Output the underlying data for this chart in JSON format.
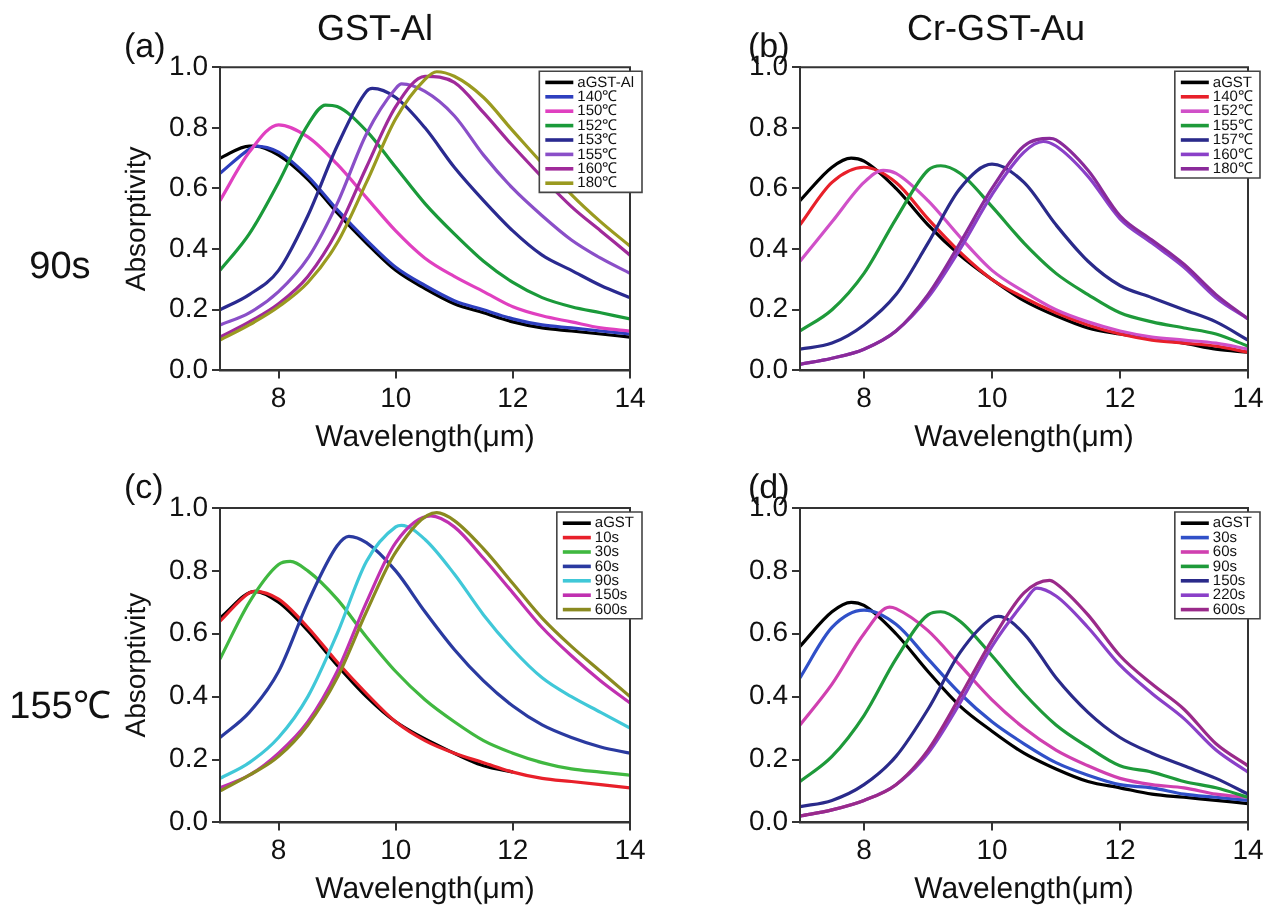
{
  "chart_data": [
    {
      "type": "line",
      "title": "GST-Al",
      "xlabel": "Wavelength(μm)",
      "ylabel": "Absorptivity",
      "annotations": [
        "(a)",
        "90s"
      ],
      "xlim": [
        7,
        14
      ],
      "xticks": [
        8,
        10,
        12,
        14
      ],
      "ylim": [
        0,
        1
      ],
      "yticks": [
        {
          "value": 0,
          "label": "0.0"
        },
        {
          "value": 0.2,
          "label": "0.2"
        },
        {
          "value": 0.4,
          "label": "0.4"
        },
        {
          "value": 0.6,
          "label": "0.6"
        },
        {
          "value": 0.8,
          "label": "0.8"
        },
        {
          "value": 1,
          "label": "1.0"
        }
      ],
      "grid": false,
      "legend": "top right",
      "marker": "none",
      "line_style": "solid",
      "series": [
        {
          "name": "aGST-Al",
          "color": "#000000",
          "x": [
            7,
            7.5,
            7.6,
            8,
            8.5,
            9,
            9.5,
            10,
            10.5,
            11,
            11.5,
            12,
            12.5,
            13,
            13.5,
            14
          ],
          "values": [
            0.7,
            0.74,
            0.74,
            0.71,
            0.63,
            0.52,
            0.42,
            0.33,
            0.27,
            0.22,
            0.19,
            0.16,
            0.14,
            0.13,
            0.12,
            0.11
          ]
        },
        {
          "name": "140℃",
          "color": "#2e3fbf",
          "x": [
            7,
            7.5,
            7.6,
            8,
            8.5,
            9,
            9.5,
            10,
            10.5,
            11,
            11.5,
            12,
            12.5,
            13,
            13.5,
            14
          ],
          "values": [
            0.65,
            0.73,
            0.74,
            0.72,
            0.64,
            0.53,
            0.43,
            0.34,
            0.28,
            0.23,
            0.2,
            0.17,
            0.15,
            0.14,
            0.13,
            0.12
          ]
        },
        {
          "name": "150℃",
          "color": "#e040c0",
          "x": [
            7,
            7.5,
            8,
            8.5,
            9,
            9.5,
            10,
            10.5,
            11,
            11.5,
            12,
            12.5,
            13,
            13.5,
            14
          ],
          "values": [
            0.56,
            0.72,
            0.81,
            0.77,
            0.68,
            0.57,
            0.46,
            0.37,
            0.31,
            0.26,
            0.21,
            0.18,
            0.16,
            0.14,
            0.13
          ]
        },
        {
          "name": "152℃",
          "color": "#1a9a3a",
          "x": [
            7,
            7.5,
            8,
            8.5,
            8.8,
            9,
            9.5,
            10,
            10.5,
            11,
            11.5,
            12,
            12.5,
            13,
            13.5,
            14
          ],
          "values": [
            0.33,
            0.45,
            0.62,
            0.81,
            0.875,
            0.87,
            0.79,
            0.67,
            0.55,
            0.45,
            0.36,
            0.29,
            0.24,
            0.21,
            0.19,
            0.17
          ]
        },
        {
          "name": "153℃",
          "color": "#2a2a90",
          "x": [
            7,
            7.5,
            8,
            8.5,
            9,
            9.5,
            9.6,
            10,
            10.5,
            11,
            11.5,
            12,
            12.5,
            13,
            13.5,
            14
          ],
          "values": [
            0.2,
            0.25,
            0.33,
            0.51,
            0.74,
            0.92,
            0.93,
            0.9,
            0.8,
            0.67,
            0.56,
            0.46,
            0.38,
            0.33,
            0.28,
            0.24
          ]
        },
        {
          "name": "155℃",
          "color": "#8a4fc8",
          "x": [
            7,
            7.5,
            8,
            8.5,
            9,
            9.5,
            10,
            10.1,
            10.5,
            11,
            11.5,
            12,
            12.5,
            13,
            13.5,
            14
          ],
          "values": [
            0.15,
            0.19,
            0.26,
            0.37,
            0.55,
            0.78,
            0.93,
            0.945,
            0.92,
            0.84,
            0.71,
            0.6,
            0.51,
            0.43,
            0.37,
            0.32
          ]
        },
        {
          "name": "160℃",
          "color": "#a02a9a",
          "x": [
            7,
            7.5,
            8,
            8.5,
            9,
            9.5,
            10,
            10.5,
            11,
            11.5,
            12,
            12.5,
            13,
            13.5,
            14
          ],
          "values": [
            0.11,
            0.16,
            0.22,
            0.31,
            0.46,
            0.67,
            0.87,
            0.97,
            0.95,
            0.85,
            0.74,
            null,
            0.54,
            0.46,
            0.38
          ]
        },
        {
          "name": "180℃",
          "color": "#9a9a20",
          "x": [
            7,
            7.5,
            8,
            8.5,
            9,
            9.5,
            10,
            10.5,
            10.7,
            11,
            11.5,
            12,
            12.5,
            13,
            13.5,
            14
          ],
          "values": [
            0.1,
            0.15,
            0.21,
            0.29,
            0.42,
            0.62,
            0.83,
            0.96,
            0.985,
            0.97,
            0.9,
            0.79,
            null,
            0.58,
            0.49,
            0.41
          ]
        }
      ]
    },
    {
      "type": "line",
      "title": "Cr-GST-Au",
      "xlabel": "Wavelength(μm)",
      "annotations": [
        "(b)"
      ],
      "xlim": [
        7,
        14
      ],
      "xticks": [
        8,
        10,
        12,
        14
      ],
      "ylim": [
        0,
        1
      ],
      "yticks": [
        {
          "value": 0,
          "label": "0.0"
        },
        {
          "value": 0.2,
          "label": "0.2"
        },
        {
          "value": 0.4,
          "label": "0.4"
        },
        {
          "value": 0.6,
          "label": "0.6"
        },
        {
          "value": 0.8,
          "label": "0.8"
        },
        {
          "value": 1,
          "label": "1.0"
        }
      ],
      "grid": false,
      "legend": "top right",
      "marker": "none",
      "line_style": "solid",
      "series": [
        {
          "name": "aGST",
          "color": "#000000",
          "x": [
            7,
            7.5,
            7.8,
            8,
            8.5,
            9,
            9.5,
            10,
            10.5,
            11,
            11.5,
            12,
            12.5,
            13,
            13.5,
            14
          ],
          "values": [
            0.56,
            0.67,
            0.7,
            0.69,
            0.6,
            0.48,
            0.38,
            0.3,
            0.23,
            0.18,
            0.14,
            0.12,
            null,
            0.09,
            0.07,
            0.06
          ]
        },
        {
          "name": "140℃",
          "color": "#e8202a",
          "x": [
            7,
            7.5,
            8,
            8.5,
            9,
            9.5,
            10,
            10.5,
            11,
            11.5,
            12,
            12.5,
            13,
            13.5,
            14
          ],
          "values": [
            0.48,
            0.62,
            0.67,
            0.62,
            0.5,
            0.39,
            0.3,
            0.24,
            0.19,
            0.15,
            0.12,
            0.1,
            0.09,
            0.08,
            0.06
          ]
        },
        {
          "name": "152℃",
          "color": "#d050c8",
          "x": [
            7,
            7.5,
            8,
            8.3,
            8.5,
            9,
            9.5,
            10,
            10.5,
            11,
            11.5,
            12,
            12.5,
            13,
            13.5,
            14
          ],
          "values": [
            0.36,
            0.49,
            0.62,
            0.66,
            0.65,
            0.56,
            0.44,
            0.33,
            0.26,
            0.2,
            0.16,
            0.13,
            0.11,
            0.1,
            0.09,
            0.07
          ]
        },
        {
          "name": "155℃",
          "color": "#1e9a3a",
          "x": [
            7,
            7.5,
            8,
            8.5,
            9,
            9.2,
            9.5,
            10,
            10.5,
            11,
            11.5,
            12,
            12.5,
            13,
            13.5,
            14
          ],
          "values": [
            0.13,
            0.2,
            0.32,
            0.5,
            0.66,
            0.675,
            0.65,
            0.54,
            0.42,
            0.32,
            0.25,
            0.19,
            0.16,
            0.14,
            0.12,
            0.08
          ]
        },
        {
          "name": "157℃",
          "color": "#2a2a8a",
          "x": [
            7,
            7.5,
            8,
            8.5,
            9,
            9.5,
            10,
            10.5,
            11,
            11.5,
            12,
            12.5,
            13,
            13.5,
            14
          ],
          "values": [
            0.07,
            0.09,
            0.15,
            0.25,
            0.42,
            0.6,
            0.68,
            0.62,
            0.48,
            0.36,
            0.28,
            0.24,
            0.2,
            0.16,
            0.1
          ]
        },
        {
          "name": "160℃",
          "color": "#8a40c8",
          "x": [
            7,
            7.5,
            8,
            8.5,
            9,
            9.5,
            10,
            10.5,
            10.8,
            11,
            11.5,
            12,
            12.5,
            13,
            13.5,
            14
          ],
          "values": [
            0.02,
            0.04,
            0.07,
            0.13,
            0.24,
            0.4,
            0.58,
            0.72,
            0.755,
            0.74,
            0.64,
            0.5,
            0.42,
            0.34,
            0.24,
            0.17
          ]
        },
        {
          "name": "180℃",
          "color": "#8a2a9a",
          "x": [
            7,
            7.5,
            8,
            8.5,
            9,
            9.5,
            10,
            10.5,
            10.9,
            11,
            11.5,
            12,
            12.5,
            13,
            13.5,
            14
          ],
          "values": [
            0.02,
            0.04,
            0.07,
            0.13,
            0.25,
            0.42,
            0.6,
            0.74,
            0.765,
            0.76,
            0.66,
            0.51,
            0.43,
            0.35,
            0.25,
            0.17
          ]
        }
      ]
    },
    {
      "type": "line",
      "xlabel": "Wavelength(μm)",
      "ylabel": "Absorptivity",
      "annotations": [
        "(c)",
        "155℃"
      ],
      "xlim": [
        7,
        14
      ],
      "xticks": [
        8,
        10,
        12,
        14
      ],
      "ylim": [
        0,
        1
      ],
      "yticks": [
        {
          "value": 0,
          "label": "0.0"
        },
        {
          "value": 0.2,
          "label": "0.2"
        },
        {
          "value": 0.4,
          "label": "0.4"
        },
        {
          "value": 0.6,
          "label": "0.6"
        },
        {
          "value": 0.8,
          "label": "0.8"
        },
        {
          "value": 1,
          "label": "1.0"
        }
      ],
      "grid": false,
      "legend": "top right",
      "marker": "none",
      "line_style": "solid",
      "series": [
        {
          "name": "aGST",
          "color": "#000000",
          "x": [
            7,
            7.5,
            7.6,
            8,
            8.5,
            9,
            9.5,
            10,
            10.5,
            11,
            11.5,
            12
          ],
          "values": [
            0.65,
            null,
            0.735,
            0.7,
            0.61,
            0.5,
            0.4,
            0.32,
            null,
            0.22,
            0.18,
            0.16
          ]
        },
        {
          "name": "10s",
          "color": "#e8202a",
          "x": [
            7,
            7.5,
            7.6,
            8,
            8.5,
            9,
            9.5,
            10,
            10.5,
            11,
            11.5,
            12,
            12.5,
            13,
            13.5,
            14
          ],
          "values": [
            0.64,
            0.73,
            0.735,
            0.71,
            0.62,
            0.51,
            0.41,
            0.32,
            0.26,
            0.22,
            0.19,
            0.16,
            0.14,
            0.13,
            0.12,
            0.11
          ]
        },
        {
          "name": "30s",
          "color": "#40b840",
          "x": [
            7,
            7.5,
            8,
            8.2,
            8.5,
            9,
            9.5,
            10,
            10.5,
            11,
            11.5,
            12,
            12.5,
            13,
            13.5,
            14
          ],
          "values": [
            0.52,
            0.7,
            0.82,
            0.83,
            0.8,
            0.71,
            0.59,
            0.48,
            0.39,
            0.32,
            0.26,
            0.22,
            0.19,
            0.17,
            0.16,
            0.15
          ]
        },
        {
          "name": "60s",
          "color": "#2a3aa0",
          "x": [
            7,
            7.5,
            8,
            8.5,
            9,
            9.2,
            9.5,
            10,
            10.5,
            11,
            11.5,
            12,
            12.5,
            13,
            13.5,
            14
          ],
          "values": [
            0.27,
            0.35,
            0.48,
            0.7,
            0.88,
            0.91,
            0.89,
            0.8,
            0.67,
            0.55,
            0.45,
            0.37,
            0.31,
            0.27,
            0.24,
            0.22
          ]
        },
        {
          "name": "90s",
          "color": "#40c8d8",
          "x": [
            7,
            7.5,
            8,
            8.5,
            9,
            9.5,
            10,
            10.1,
            10.5,
            11,
            11.5,
            12,
            12.5,
            13,
            13.5,
            14
          ],
          "values": [
            0.14,
            0.19,
            0.27,
            0.4,
            0.6,
            0.83,
            0.94,
            0.945,
            0.9,
            0.79,
            0.66,
            0.55,
            0.46,
            0.4,
            0.35,
            0.3
          ]
        },
        {
          "name": "150s",
          "color": "#c030b0",
          "x": [
            7,
            7.5,
            8,
            8.5,
            9,
            9.5,
            10,
            10.6,
            11,
            11.5,
            12,
            12.5,
            13,
            13.5,
            14
          ],
          "values": [
            0.11,
            0.15,
            0.22,
            0.32,
            0.48,
            0.7,
            0.89,
            0.975,
            0.94,
            0.84,
            0.73,
            0.62,
            0.53,
            0.45,
            0.38
          ]
        },
        {
          "name": "600s",
          "color": "#8a8a20",
          "x": [
            7,
            7.5,
            8,
            8.5,
            9,
            9.5,
            10,
            10.7,
            11,
            11.5,
            12,
            12.5,
            13,
            13.5,
            14
          ],
          "values": [
            0.1,
            0.15,
            0.21,
            0.31,
            0.46,
            0.67,
            0.86,
            0.985,
            0.96,
            0.87,
            0.76,
            0.65,
            0.56,
            0.48,
            0.4
          ]
        }
      ]
    },
    {
      "type": "line",
      "xlabel": "Wavelength(μm)",
      "annotations": [
        "(d)"
      ],
      "xlim": [
        7,
        14
      ],
      "xticks": [
        8,
        10,
        12,
        14
      ],
      "ylim": [
        0,
        1
      ],
      "yticks": [
        {
          "value": 0,
          "label": "0.0"
        },
        {
          "value": 0.2,
          "label": "0.2"
        },
        {
          "value": 0.4,
          "label": "0.4"
        },
        {
          "value": 0.6,
          "label": "0.6"
        },
        {
          "value": 0.8,
          "label": "0.8"
        },
        {
          "value": 1,
          "label": "1.0"
        }
      ],
      "grid": false,
      "legend": "top right",
      "marker": "none",
      "line_style": "solid",
      "series": [
        {
          "name": "aGST",
          "color": "#000000",
          "x": [
            7,
            7.5,
            7.8,
            8,
            8.5,
            9,
            9.5,
            10,
            10.5,
            11,
            11.5,
            12,
            12.5,
            13,
            13.5,
            14
          ],
          "values": [
            0.56,
            0.67,
            0.7,
            0.69,
            0.6,
            0.48,
            0.37,
            0.29,
            0.22,
            0.17,
            0.13,
            0.11,
            0.09,
            0.08,
            0.07,
            0.06
          ]
        },
        {
          "name": "30s",
          "color": "#3050c8",
          "x": [
            7,
            7.5,
            8,
            8.5,
            9,
            9.5,
            10,
            10.5,
            11,
            11.5,
            12,
            12.5,
            13,
            13.5,
            14
          ],
          "values": [
            0.46,
            0.62,
            0.675,
            0.63,
            0.52,
            0.41,
            0.32,
            0.25,
            0.19,
            0.15,
            0.12,
            0.11,
            0.09,
            0.08,
            0.07
          ]
        },
        {
          "name": "60s",
          "color": "#d040b0",
          "x": [
            7,
            7.5,
            8,
            8.4,
            8.5,
            9,
            9.5,
            10,
            10.5,
            11,
            11.5,
            12,
            12.5,
            13,
            13.5,
            14
          ],
          "values": [
            0.31,
            0.44,
            0.6,
            0.685,
            0.68,
            0.61,
            0.5,
            0.39,
            0.3,
            0.23,
            0.18,
            0.14,
            0.12,
            0.11,
            0.09,
            0.08
          ]
        },
        {
          "name": "90s",
          "color": "#1e9a3a",
          "x": [
            7,
            7.5,
            8,
            8.5,
            9,
            9.2,
            9.5,
            10,
            10.5,
            11,
            11.5,
            12,
            12.5,
            13,
            13.5,
            14
          ],
          "values": [
            0.13,
            0.21,
            0.34,
            0.52,
            0.66,
            0.67,
            0.64,
            0.53,
            0.41,
            0.31,
            0.24,
            0.18,
            0.16,
            0.13,
            0.11,
            0.08
          ]
        },
        {
          "name": "150s",
          "color": "#2a2a8a",
          "x": [
            7,
            7.5,
            8,
            8.5,
            9,
            9.5,
            10,
            10.1,
            10.5,
            11,
            11.5,
            12,
            12.5,
            13,
            13.5,
            14
          ],
          "values": [
            0.05,
            0.07,
            0.12,
            0.21,
            0.36,
            0.54,
            0.65,
            0.655,
            0.6,
            0.46,
            0.35,
            0.27,
            0.22,
            0.18,
            0.14,
            0.09
          ]
        },
        {
          "name": "220s",
          "color": "#8a40c8",
          "x": [
            7,
            7.5,
            8,
            8.5,
            9,
            9.5,
            10,
            10.5,
            10.7,
            11,
            11.5,
            12,
            12.5,
            13,
            13.5,
            14
          ],
          "values": [
            0.02,
            0.04,
            0.07,
            0.12,
            0.22,
            0.38,
            0.56,
            0.7,
            0.745,
            0.72,
            0.62,
            0.5,
            0.41,
            0.33,
            0.23,
            0.16
          ]
        },
        {
          "name": "600s",
          "color": "#9a2a8a",
          "x": [
            7,
            7.5,
            8,
            8.5,
            9,
            9.5,
            10,
            10.5,
            10.9,
            11,
            11.5,
            12,
            12.5,
            13,
            13.5,
            14
          ],
          "values": [
            0.02,
            0.04,
            0.07,
            0.12,
            0.23,
            0.4,
            0.58,
            0.73,
            0.77,
            0.76,
            0.66,
            0.53,
            0.44,
            0.36,
            0.25,
            0.18
          ]
        }
      ]
    }
  ]
}
